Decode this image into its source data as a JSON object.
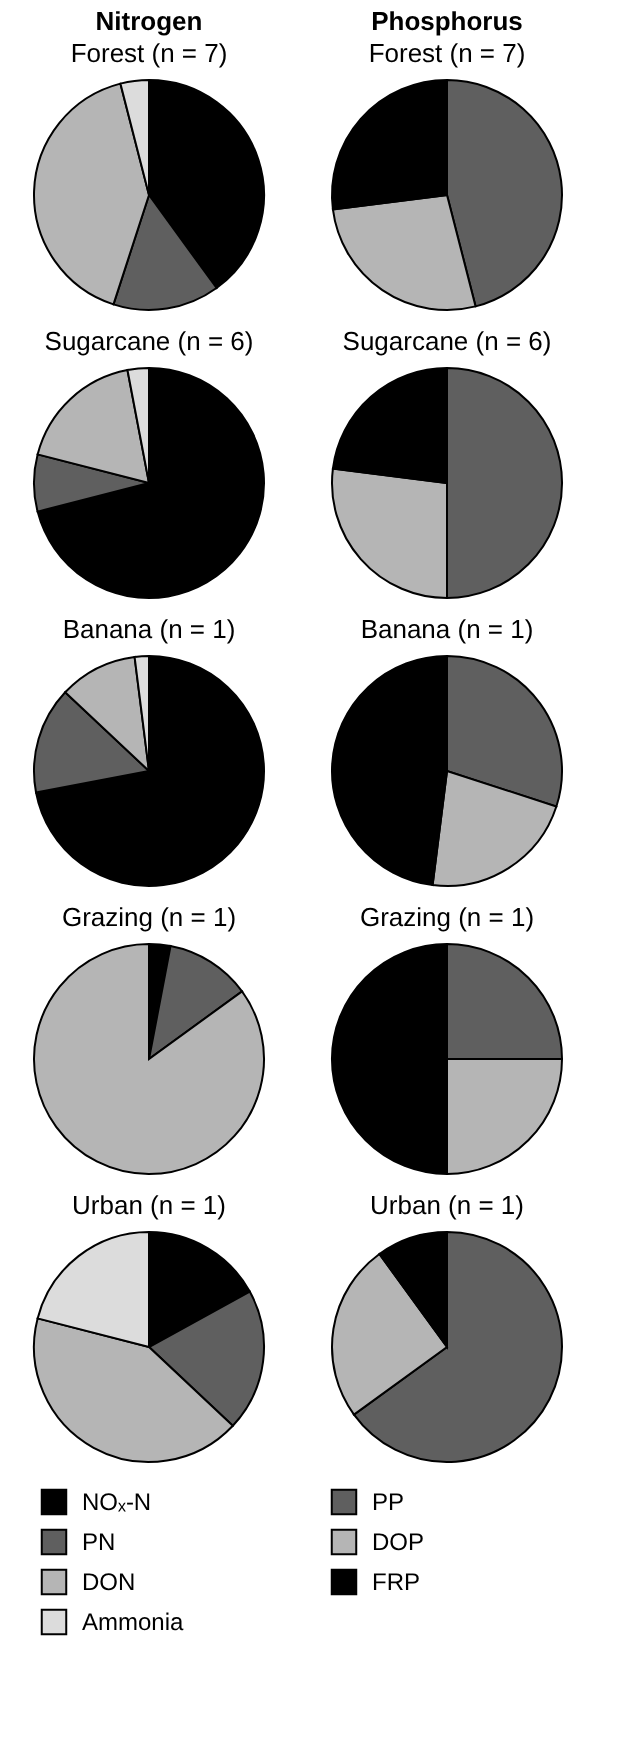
{
  "chart_data": [
    {
      "type": "pie",
      "title": "Nitrogen",
      "subtitle": "Forest (n = 7)",
      "categories": [
        "NOₓ-N",
        "PN",
        "DON",
        "Ammonia"
      ],
      "values": [
        40,
        15,
        41,
        4
      ],
      "colors": [
        "#000000",
        "#5f5f5f",
        "#b5b5b5",
        "#dcdcdc"
      ],
      "legend": "bottom"
    },
    {
      "type": "pie",
      "title": "Phosphorus",
      "subtitle": "Forest (n = 7)",
      "categories": [
        "PP",
        "DOP",
        "FRP"
      ],
      "values": [
        46,
        27,
        27
      ],
      "colors": [
        "#5f5f5f",
        "#b5b5b5",
        "#000000"
      ],
      "legend": "bottom"
    },
    {
      "type": "pie",
      "title": "Sugarcane (n = 6)",
      "categories": [
        null,
        null,
        null,
        null
      ],
      "values": [
        71,
        8,
        18,
        3
      ],
      "colors": [
        "#000000",
        "#5f5f5f",
        "#b5b5b5",
        "#dcdcdc"
      ]
    },
    {
      "type": "pie",
      "title": "Sugarcane (n = 6)",
      "categories": [
        null,
        null,
        null
      ],
      "values": [
        50,
        27,
        23
      ],
      "colors": [
        "#5f5f5f",
        "#b5b5b5",
        "#000000"
      ]
    },
    {
      "type": "pie",
      "title": "Banana (n = 1)",
      "categories": [
        null,
        null,
        null,
        null
      ],
      "values": [
        72,
        15,
        11,
        2
      ],
      "colors": [
        "#000000",
        "#5f5f5f",
        "#b5b5b5",
        "#dcdcdc"
      ]
    },
    {
      "type": "pie",
      "title": "Banana (n = 1)",
      "categories": [
        null,
        null,
        null
      ],
      "values": [
        30,
        22,
        48
      ],
      "colors": [
        "#5f5f5f",
        "#b5b5b5",
        "#000000"
      ]
    },
    {
      "type": "pie",
      "title": "Grazing (n = 1)",
      "categories": [
        null,
        null,
        null
      ],
      "values": [
        3,
        12,
        85
      ],
      "colors": [
        "#000000",
        "#5f5f5f",
        "#b5b5b5"
      ]
    },
    {
      "type": "pie",
      "title": "Grazing (n = 1)",
      "categories": [
        null,
        null,
        null
      ],
      "values": [
        25,
        25,
        50
      ],
      "colors": [
        "#5f5f5f",
        "#b5b5b5",
        "#000000"
      ]
    },
    {
      "type": "pie",
      "title": "Urban (n = 1)",
      "categories": [
        null,
        null,
        null,
        null
      ],
      "values": [
        17,
        20,
        42,
        21
      ],
      "colors": [
        "#000000",
        "#5f5f5f",
        "#b5b5b5",
        "#dcdcdc"
      ]
    },
    {
      "type": "pie",
      "title": "Urban (n = 1)",
      "categories": [
        null,
        null,
        null
      ],
      "values": [
        65,
        25,
        10
      ],
      "colors": [
        "#5f5f5f",
        "#b5b5b5",
        "#000000"
      ]
    }
  ]
}
